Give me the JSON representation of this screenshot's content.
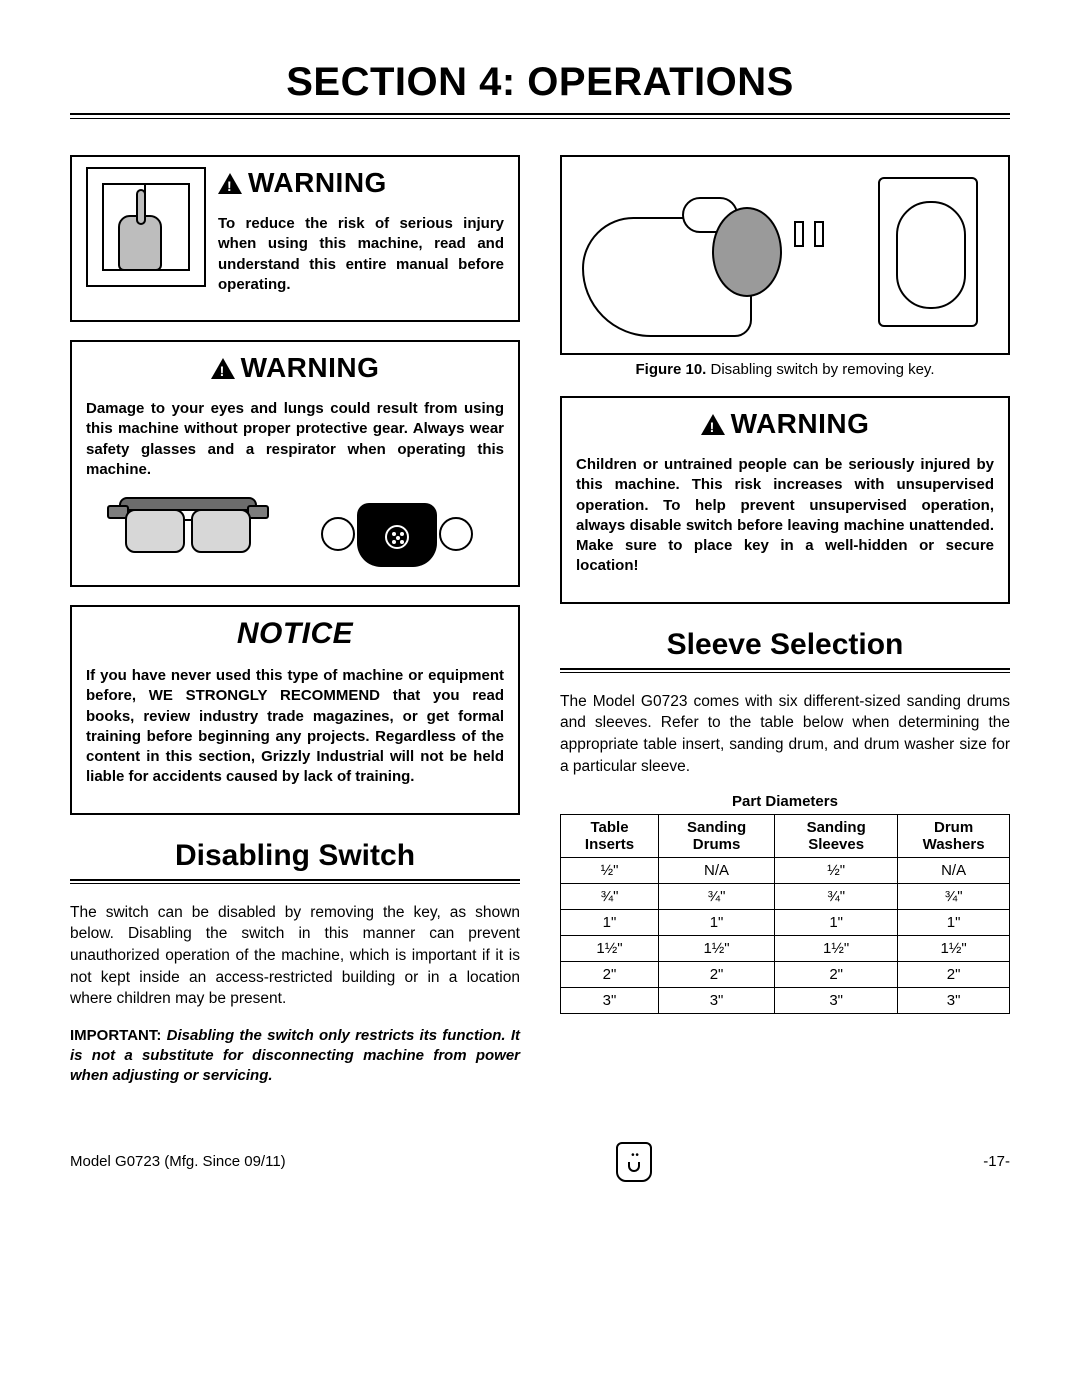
{
  "section_title": "SECTION 4: OPERATIONS",
  "warning_label": "WARNING",
  "notice_label": "NOTICE",
  "warning1": "To reduce the risk of serious injury when using this machine, read and understand this entire manual before operating.",
  "warning2": "Damage to your eyes and lungs could result from using this machine without proper protective gear. Always wear safety glasses and a respirator when operating this machine.",
  "notice": "If you have never used this type of machine or equipment before, WE STRONGLY RECOMMEND that you read books, review industry trade magazines, or get formal training before beginning any projects. Regardless of the content in this section, Grizzly Industrial will not be held liable for accidents caused by lack of training.",
  "disabling_switch": {
    "heading": "Disabling Switch",
    "para": "The switch can be disabled by removing the key, as shown below. Disabling the switch in this manner can prevent unauthorized operation of the machine, which is important if it is not kept inside an access-restricted building or in a location where children may be present.",
    "important_lead": "IMPORTANT: ",
    "important": "Disabling the switch only restricts its function. It is not a substitute for disconnecting machine from power when adjusting or servicing."
  },
  "figure10": {
    "label": "Figure 10.",
    "caption": " Disabling switch by removing key."
  },
  "warning3": "Children or untrained people can be seriously injured by this machine. This risk increases with unsupervised operation. To help prevent unsupervised operation, always disable switch before leaving machine unattended. Make sure to place key in a well-hidden or secure location!",
  "sleeve": {
    "heading": "Sleeve Selection",
    "para": "The Model G0723 comes with six different-sized sanding drums and sleeves. Refer to the table below when determining the appropriate table insert, sanding drum, and drum washer size for a particular sleeve."
  },
  "table": {
    "caption": "Part Diameters",
    "headers": [
      "Table Inserts",
      "Sanding Drums",
      "Sanding Sleeves",
      "Drum Washers"
    ],
    "rows": [
      [
        "½\"",
        "N/A",
        "½\"",
        "N/A"
      ],
      [
        "¾\"",
        "¾\"",
        "¾\"",
        "¾\""
      ],
      [
        "1\"",
        "1\"",
        "1\"",
        "1\""
      ],
      [
        "1½\"",
        "1½\"",
        "1½\"",
        "1½\""
      ],
      [
        "2\"",
        "2\"",
        "2\"",
        "2\""
      ],
      [
        "3\"",
        "3\"",
        "3\"",
        "3\""
      ]
    ]
  },
  "footer": {
    "model": "Model G0723 (Mfg. Since 09/11)",
    "page": "-17-"
  },
  "colors": {
    "text": "#000000",
    "background": "#ffffff",
    "icon_gray": "#bdbdbd"
  }
}
